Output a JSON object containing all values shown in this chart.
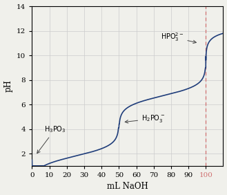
{
  "title": "",
  "xlabel": "mL NaOH",
  "ylabel": "pH",
  "xlim": [
    0,
    110
  ],
  "ylim": [
    1,
    14
  ],
  "yticks": [
    2,
    4,
    6,
    8,
    10,
    12,
    14
  ],
  "xticks": [
    0,
    10,
    20,
    30,
    40,
    50,
    60,
    70,
    80,
    90,
    100
  ],
  "curve_color": "#1f3d7a",
  "dashed_line_x": 100,
  "dashed_line_color": "#d07070",
  "bg_color": "#f0f0eb",
  "grid_color": "#cccccc",
  "pKa1": 1.8,
  "pKa2": 6.7,
  "eq1": 50,
  "eq2": 100
}
